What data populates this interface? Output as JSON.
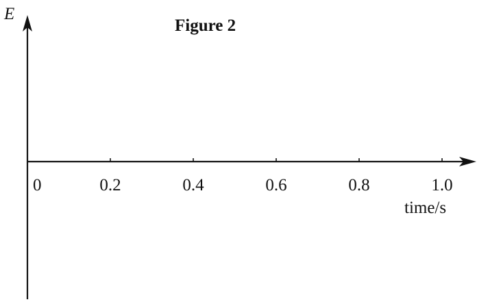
{
  "chart_data": {
    "type": "line",
    "title": "Figure 2",
    "xlabel": "time/s",
    "ylabel": "E",
    "xlim": [
      0,
      1.0
    ],
    "x_ticks": [
      "0",
      "0.2",
      "0.4",
      "0.6",
      "0.8",
      "1.0"
    ],
    "x_tick_values": [
      0,
      0.2,
      0.4,
      0.6,
      0.8,
      1.0
    ],
    "series": [],
    "grid": false,
    "colors": {
      "ink": "#111111",
      "background": "#ffffff"
    }
  }
}
